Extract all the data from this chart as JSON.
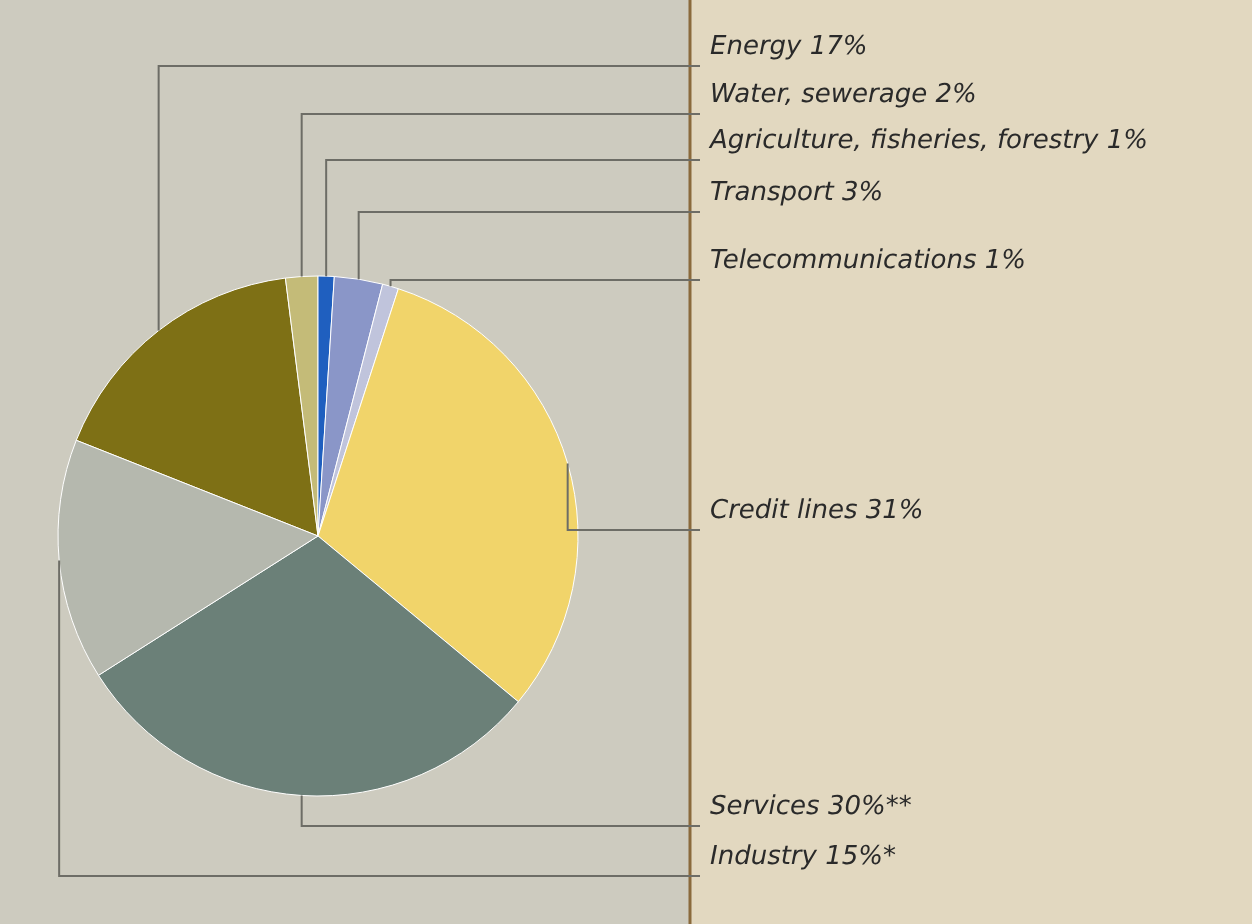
{
  "chart_data": {
    "type": "pie",
    "categories": [
      "Energy",
      "Water, sewerage",
      "Agriculture, fisheries, forestry",
      "Transport",
      "Telecommunications",
      "Credit lines",
      "Services",
      "Industry"
    ],
    "values": [
      17,
      2,
      1,
      3,
      1,
      31,
      30,
      15
    ],
    "value_labels": [
      "17%",
      "2%",
      "1%",
      "3%",
      "1%",
      "31%",
      "30%**",
      "15%*"
    ],
    "colors": [
      "#7e7015",
      "#c4bb78",
      "#1f5fbf",
      "#8a96c8",
      "#c0c4dc",
      "#f1d46a",
      "#6b8078",
      "#b5b8ae"
    ]
  }
}
